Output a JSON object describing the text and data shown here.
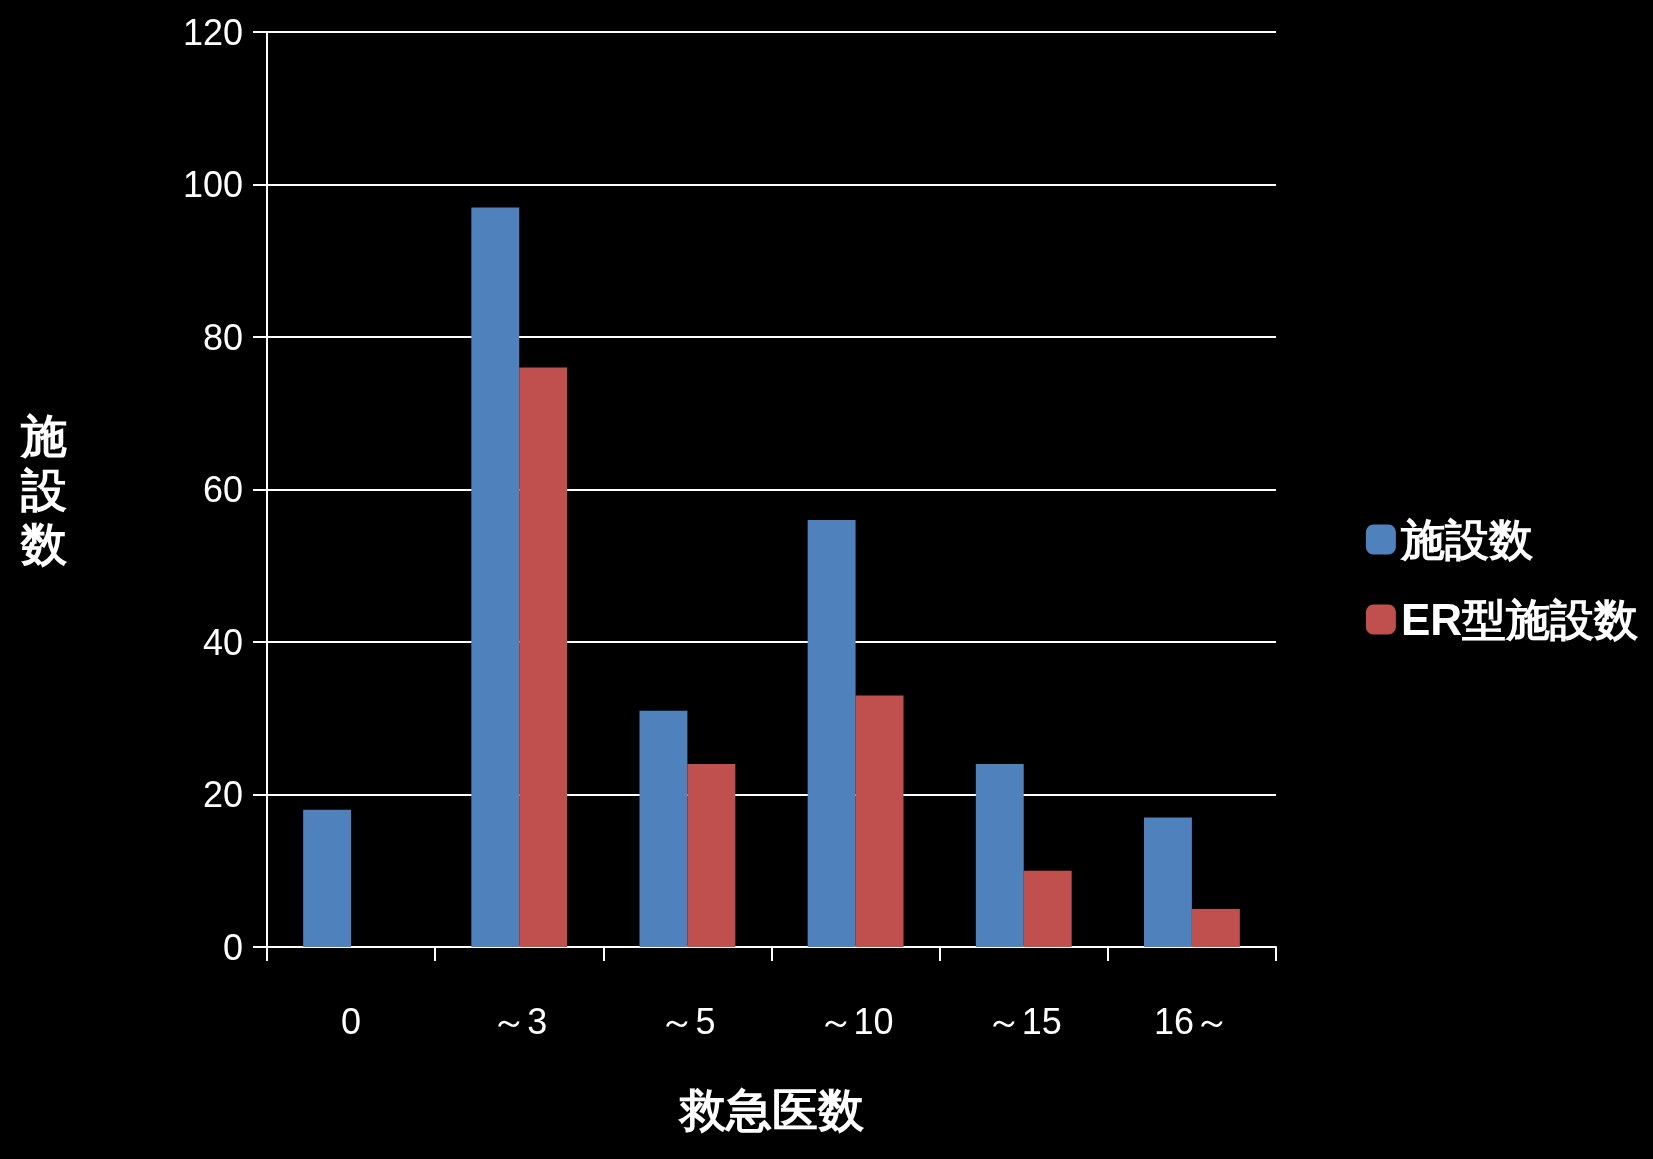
{
  "chart_data": {
    "type": "bar",
    "xlabel": "救急医数",
    "ylabel": "施設数",
    "categories": [
      "0",
      "～3",
      "～5",
      "～10",
      "～15",
      "16～"
    ],
    "series": [
      {
        "name": "施設数",
        "color": "#4f81bd",
        "values": [
          18,
          97,
          31,
          56,
          24,
          17
        ]
      },
      {
        "name": "ER型施設数",
        "color": "#c0504d",
        "values": [
          null,
          76,
          24,
          33,
          10,
          5
        ]
      }
    ],
    "ylim": [
      0,
      120
    ],
    "yticks": [
      0,
      20,
      40,
      60,
      80,
      100,
      120
    ],
    "grid": "y",
    "legend": "right"
  }
}
